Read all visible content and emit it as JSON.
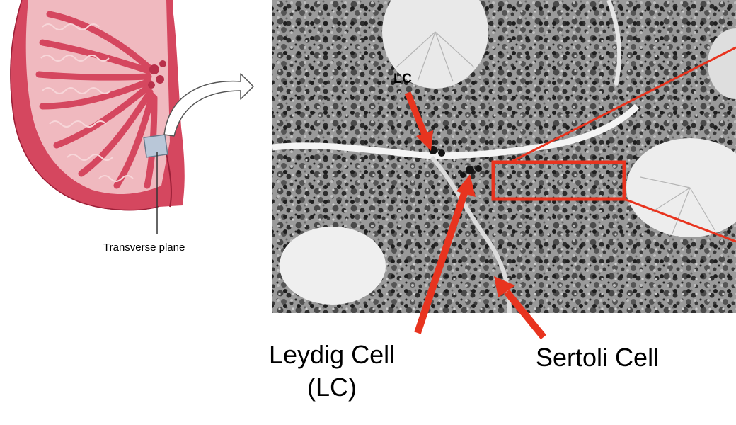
{
  "diagram": {
    "plane_label": "Transverse plane",
    "lc_tag": "LC",
    "leydig_label_line1": "Leydig Cell",
    "leydig_label_line2": "(LC)",
    "sertoli_label": "Sertoli Cell"
  },
  "colors": {
    "tissue_pink": "#d5475f",
    "tissue_light": "#f2c2c6",
    "arrow_red": "#e8341f",
    "micro_bg": "#8c8c8c"
  }
}
